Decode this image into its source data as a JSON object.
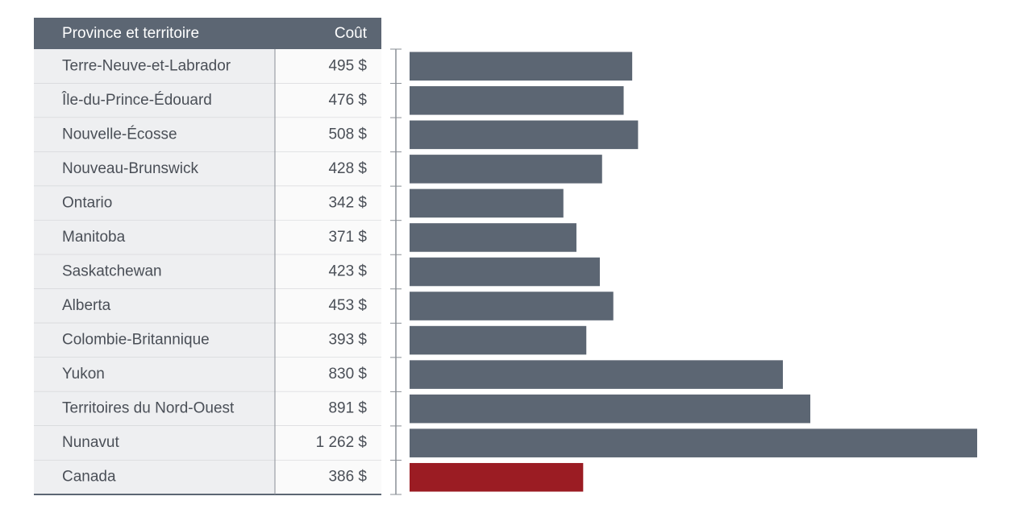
{
  "chart_data": {
    "type": "bar",
    "column_headers": [
      "Province et territoire",
      "Coût"
    ],
    "categories": [
      "Terre-Neuve-et-Labrador",
      "Île-du-Prince-Édouard",
      "Nouvelle-Écosse",
      "Nouveau-Brunswick",
      "Ontario",
      "Manitoba",
      "Saskatchewan",
      "Alberta",
      "Colombie-Britannique",
      "Yukon",
      "Territoires du Nord-Ouest",
      "Nunavut",
      "Canada"
    ],
    "values": [
      495,
      476,
      508,
      428,
      342,
      371,
      423,
      453,
      393,
      830,
      891,
      1262,
      386
    ],
    "value_labels": [
      "495 $",
      "476 $",
      "508 $",
      "428 $",
      "342 $",
      "371 $",
      "423 $",
      "453 $",
      "393 $",
      "830 $",
      "891 $",
      "1 262 $",
      "386 $"
    ],
    "colors": [
      "#5c6673",
      "#5c6673",
      "#5c6673",
      "#5c6673",
      "#5c6673",
      "#5c6673",
      "#5c6673",
      "#5c6673",
      "#5c6673",
      "#5c6673",
      "#5c6673",
      "#5c6673",
      "#9b1c23"
    ]
  }
}
